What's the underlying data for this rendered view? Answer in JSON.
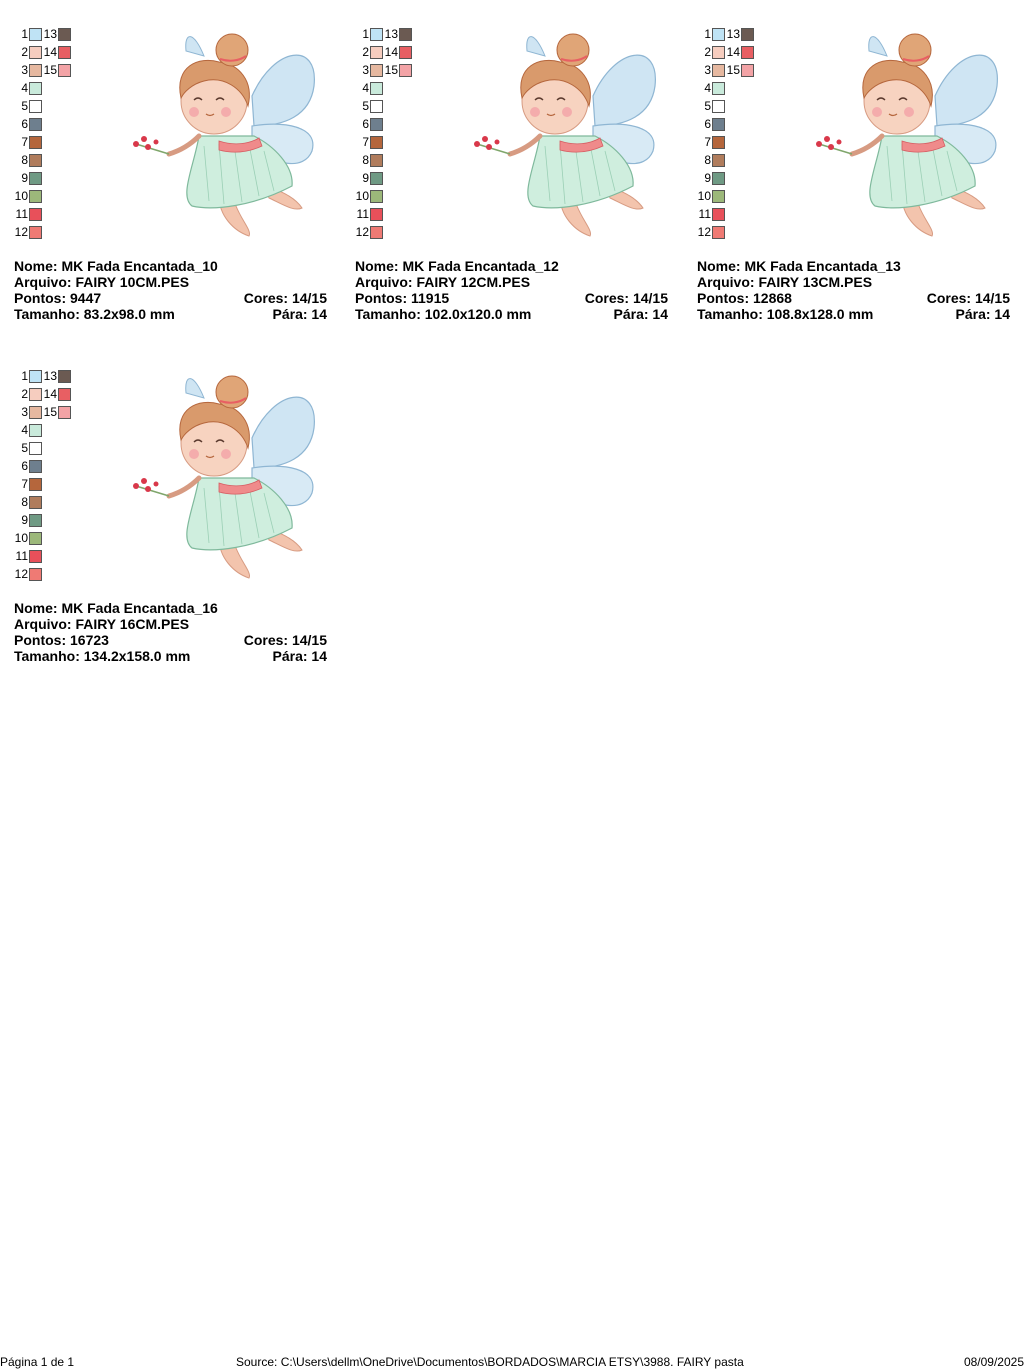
{
  "palette": {
    "left": [
      {
        "num": "1",
        "color": "#bfe3f5"
      },
      {
        "num": "2",
        "color": "#f6cdbf"
      },
      {
        "num": "3",
        "color": "#e6b8a0"
      },
      {
        "num": "4",
        "color": "#c9eadb"
      },
      {
        "num": "5",
        "color": "#ffffff"
      },
      {
        "num": "6",
        "color": "#6e7f8e"
      },
      {
        "num": "7",
        "color": "#b5663c"
      },
      {
        "num": "8",
        "color": "#b07c5c"
      },
      {
        "num": "9",
        "color": "#6f9a84"
      },
      {
        "num": "10",
        "color": "#9cb87a"
      },
      {
        "num": "11",
        "color": "#e8505a"
      },
      {
        "num": "12",
        "color": "#ef7a74"
      }
    ],
    "right": [
      {
        "num": "13",
        "color": "#6b5a52"
      },
      {
        "num": "14",
        "color": "#e85f63"
      },
      {
        "num": "15",
        "color": "#f3a3a6"
      }
    ]
  },
  "cards": [
    {
      "nome": "Nome: MK Fada Encantada_10",
      "arquivo": "Arquivo: FAIRY 10CM.PES",
      "pontos": "Pontos: 9447",
      "cores": "Cores: 14/15",
      "tamanho": "Tamanho: 83.2x98.0 mm",
      "para": "Pára: 14"
    },
    {
      "nome": "Nome: MK Fada Encantada_12",
      "arquivo": "Arquivo: FAIRY 12CM.PES",
      "pontos": "Pontos: 11915",
      "cores": "Cores: 14/15",
      "tamanho": "Tamanho: 102.0x120.0 mm",
      "para": "Pára: 14"
    },
    {
      "nome": "Nome: MK Fada Encantada_13",
      "arquivo": "Arquivo: FAIRY 13CM.PES",
      "pontos": "Pontos: 12868",
      "cores": "Cores: 14/15",
      "tamanho": "Tamanho: 108.8x128.0 mm",
      "para": "Pára: 14"
    },
    {
      "nome": "Nome: MK Fada Encantada_16",
      "arquivo": "Arquivo: FAIRY 16CM.PES",
      "pontos": "Pontos: 16723",
      "cores": "Cores: 14/15",
      "tamanho": "Tamanho: 134.2x158.0 mm",
      "para": "Pára: 14"
    }
  ],
  "footer": {
    "page": "Página 1 de 1",
    "source": "Source: C:\\Users\\dellm\\OneDrive\\Documentos\\BORDADOS\\MARCIA ETSY\\3988. FAIRY pasta",
    "date": "08/09/2025"
  }
}
